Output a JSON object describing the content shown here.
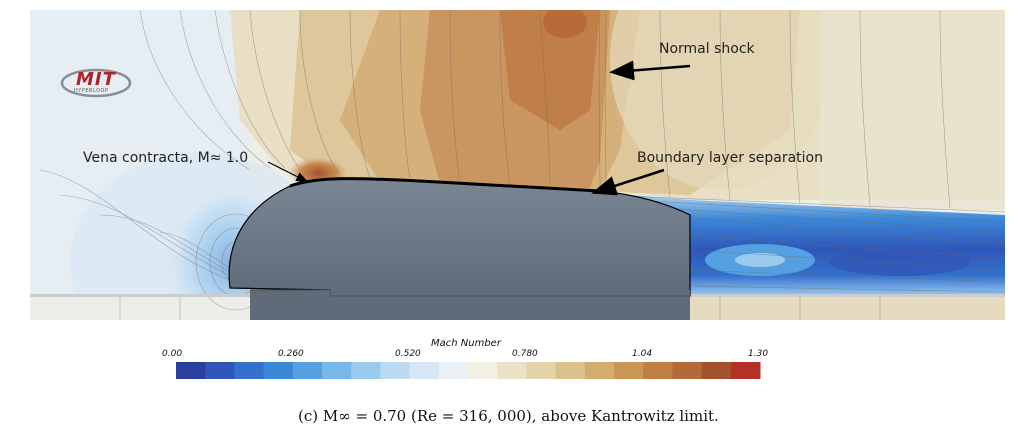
{
  "logo": {
    "text": "MIT",
    "subtext": "HYPERLOOP"
  },
  "annotations": {
    "normal_shock": "Normal shock",
    "vena_contracta": "Vena contracta, M≈ 1.0",
    "boundary_layer": "Boundary layer separation"
  },
  "colorbar": {
    "title": "Mach Number",
    "ticks": [
      "0.00",
      "0.260",
      "0.520",
      "0.780",
      "1.04",
      "1.30"
    ],
    "range": [
      0.0,
      1.3
    ],
    "colors": [
      "#2a3f9e",
      "#2f56b8",
      "#3470cc",
      "#3c88d8",
      "#55a0e0",
      "#78b8e8",
      "#9acaee",
      "#bcdaf2",
      "#d6e6f4",
      "#eaf1f6",
      "#f2efe3",
      "#ebe3c8",
      "#e3d4ab",
      "#dac28c",
      "#d2ad6e",
      "#ca9755",
      "#c08044",
      "#b46a38",
      "#a4522e",
      "#b73028"
    ]
  },
  "caption": "(c) M∞ = 0.70 (Re = 316, 000), above Kantrowitz limit."
}
